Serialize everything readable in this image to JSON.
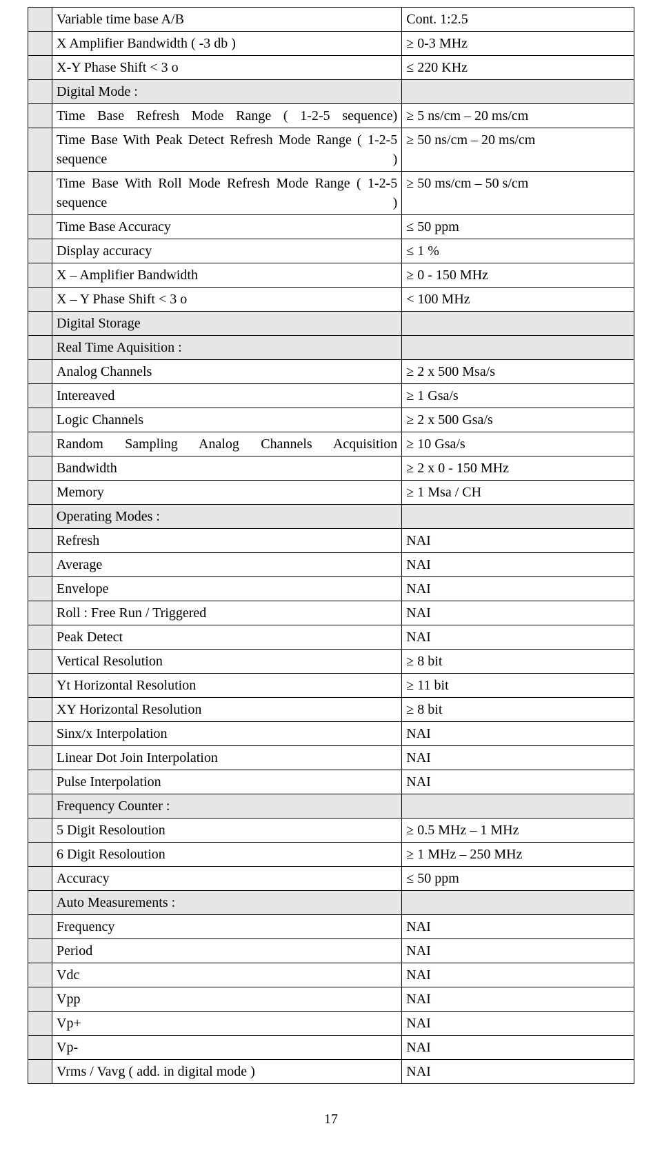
{
  "pageNumber": "17",
  "rows": [
    {
      "label": "Variable time base A/B",
      "value": "Cont. 1:2.5",
      "narrowShaded": true,
      "justify": false
    },
    {
      "label": "X Amplifier Bandwidth ( -3 db )",
      "value": "≥ 0-3 MHz",
      "narrowShaded": true,
      "justify": false
    },
    {
      "label": "X-Y Phase Shift < 3 o",
      "value": "≤ 220 KHz",
      "narrowShaded": true,
      "justify": false
    },
    {
      "label": "Digital Mode :",
      "value": "",
      "narrowShaded": true,
      "labelShaded": true,
      "valueShaded": true,
      "justify": false
    },
    {
      "label": "Time Base Refresh Mode Range ( 1-2-5 sequence)",
      "value": "≥ 5 ns/cm – 20 ms/cm",
      "narrowShaded": true,
      "justify": true
    },
    {
      "label": "Time Base With Peak Detect Refresh Mode Range ( 1-2-5 sequence )",
      "value": "≥ 50 ns/cm – 20 ms/cm",
      "narrowShaded": true,
      "justify": true
    },
    {
      "label": "Time Base With Roll Mode Refresh Mode Range ( 1-2-5 sequence )",
      "value": "≥ 50 ms/cm – 50 s/cm",
      "narrowShaded": true,
      "justify": true
    },
    {
      "label": "Time Base Accuracy",
      "value": "≤  50 ppm",
      "narrowShaded": true,
      "justify": false
    },
    {
      "label": "Display accuracy",
      "value": "≤  1 %",
      "narrowShaded": true,
      "justify": false
    },
    {
      "label": "X – Amplifier Bandwidth",
      "value": "≥ 0 - 150 MHz",
      "narrowShaded": true,
      "justify": false
    },
    {
      "label": "X – Y Phase Shift < 3 o",
      "value": "< 100 MHz",
      "narrowShaded": true,
      "justify": false
    },
    {
      "label": "Digital Storage",
      "value": "",
      "narrowShaded": true,
      "labelShaded": true,
      "valueShaded": true,
      "justify": false
    },
    {
      "label": "Real Time Aquisition :",
      "value": "",
      "narrowShaded": true,
      "labelShaded": true,
      "valueShaded": true,
      "justify": false
    },
    {
      "label": "Analog Channels",
      "value": "≥ 2 x 500 Msa/s",
      "narrowShaded": true,
      "justify": false
    },
    {
      "label": "Intereaved",
      "value": "≥ 1 Gsa/s",
      "narrowShaded": true,
      "justify": false
    },
    {
      "label": "Logic Channels",
      "value": "≥ 2 x 500 Gsa/s",
      "narrowShaded": true,
      "justify": false
    },
    {
      "label": "Random Sampling Analog Channels Acquisition",
      "value": "≥ 10 Gsa/s",
      "narrowShaded": true,
      "justify": true
    },
    {
      "label": "Bandwidth",
      "value": "≥ 2 x 0 - 150 MHz",
      "narrowShaded": true,
      "justify": false
    },
    {
      "label": "Memory",
      "value": "≥ 1 Msa / CH",
      "narrowShaded": true,
      "justify": false
    },
    {
      "label": "Operating Modes :",
      "value": "",
      "narrowShaded": true,
      "labelShaded": true,
      "valueShaded": true,
      "justify": false
    },
    {
      "label": "Refresh",
      "value": "NAI",
      "narrowShaded": true,
      "justify": false
    },
    {
      "label": "Average",
      "value": "NAI",
      "narrowShaded": true,
      "justify": false
    },
    {
      "label": "Envelope",
      "value": "NAI",
      "narrowShaded": true,
      "justify": false
    },
    {
      "label": "Roll : Free Run / Triggered",
      "value": "NAI",
      "narrowShaded": true,
      "justify": false
    },
    {
      "label": "Peak Detect",
      "value": "NAI",
      "narrowShaded": true,
      "justify": false
    },
    {
      "label": "Vertical Resolution",
      "value": "≥ 8 bit",
      "narrowShaded": true,
      "justify": false
    },
    {
      "label": "Yt Horizontal Resolution",
      "value": "≥ 11 bit",
      "narrowShaded": true,
      "justify": false
    },
    {
      "label": "XY Horizontal Resolution",
      "value": "≥ 8 bit",
      "narrowShaded": true,
      "justify": false
    },
    {
      "label": "Sinx/x Interpolation",
      "value": "NAI",
      "narrowShaded": true,
      "justify": false
    },
    {
      "label": "Linear Dot Join Interpolation",
      "value": "NAI",
      "narrowShaded": true,
      "justify": false
    },
    {
      "label": "Pulse Interpolation",
      "value": "NAI",
      "narrowShaded": true,
      "justify": false
    },
    {
      "label": "Frequency Counter :",
      "value": "",
      "narrowShaded": true,
      "labelShaded": true,
      "valueShaded": true,
      "justify": false
    },
    {
      "label": "5 Digit Resoloution",
      "value": "≥ 0.5 MHz – 1 MHz",
      "narrowShaded": true,
      "justify": false
    },
    {
      "label": "6 Digit Resoloution",
      "value": "≥ 1 MHz – 250 MHz",
      "narrowShaded": true,
      "justify": false
    },
    {
      "label": "Accuracy",
      "value": "≤  50 ppm",
      "narrowShaded": true,
      "justify": false
    },
    {
      "label": "Auto Measurements :",
      "value": "",
      "narrowShaded": true,
      "labelShaded": true,
      "valueShaded": true,
      "justify": false
    },
    {
      "label": "Frequency",
      "value": "NAI",
      "narrowShaded": true,
      "justify": false
    },
    {
      "label": "Period",
      "value": "NAI",
      "narrowShaded": true,
      "justify": false
    },
    {
      "label": "Vdc",
      "value": "NAI",
      "narrowShaded": true,
      "justify": false
    },
    {
      "label": "Vpp",
      "value": "NAI",
      "narrowShaded": true,
      "justify": false
    },
    {
      "label": "Vp+",
      "value": "NAI",
      "narrowShaded": true,
      "justify": false
    },
    {
      "label": "Vp-",
      "value": "NAI",
      "narrowShaded": true,
      "justify": false
    },
    {
      "label": "Vrms / Vavg ( add. in digital mode )",
      "value": "NAI",
      "narrowShaded": true,
      "justify": false
    }
  ]
}
